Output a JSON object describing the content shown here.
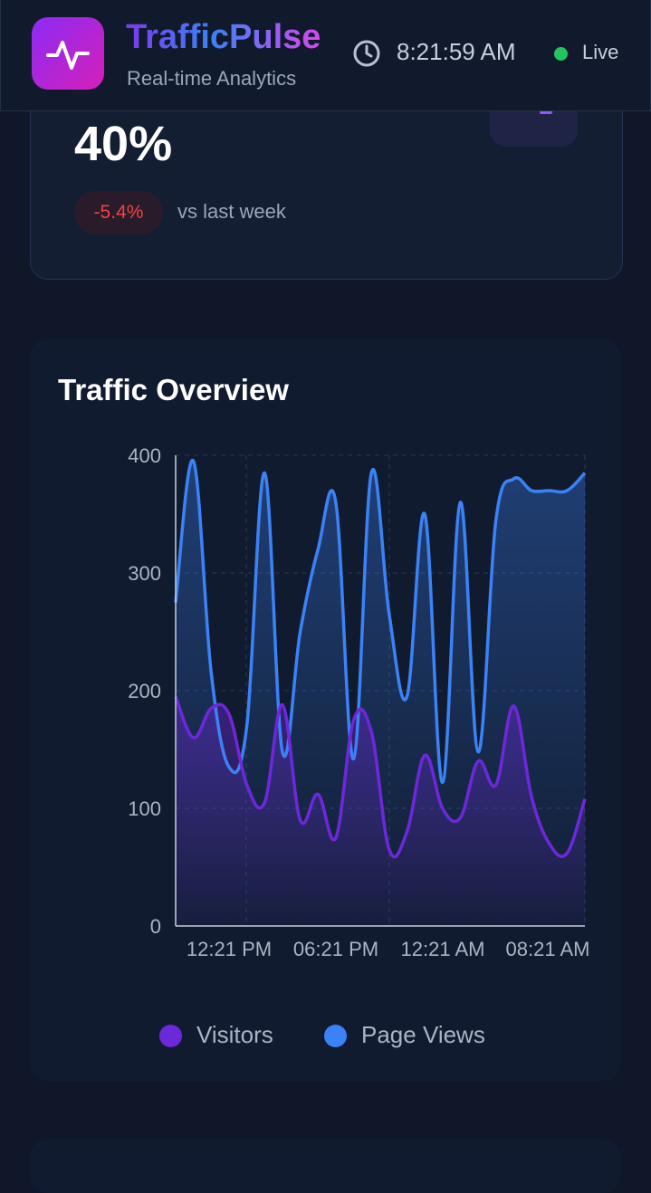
{
  "header": {
    "app_name": "TrafficPulse",
    "subtitle": "Real-time Analytics",
    "time": "8:21:59 AM",
    "status": "Live",
    "logo_icon": "activity-pulse-icon",
    "clock_icon": "clock-icon"
  },
  "stat_card": {
    "value": "40%",
    "change": "-5.4%",
    "comparison": "vs last week"
  },
  "colors": {
    "visitors": "#6d28d9",
    "page_views": "#3b82f6",
    "live": "#22c55e",
    "negative": "#ef4444"
  },
  "chart_data": {
    "type": "area",
    "title": "Traffic Overview",
    "ylim": [
      0,
      400
    ],
    "yticks": [
      0,
      100,
      200,
      300,
      400
    ],
    "xticks": [
      "12:21 PM",
      "06:21 PM",
      "12:21 AM",
      "08:21 AM"
    ],
    "grid": true,
    "legend_position": "bottom",
    "series": [
      {
        "name": "Visitors",
        "values": [
          195,
          160,
          185,
          180,
          120,
          105,
          188,
          90,
          112,
          75,
          175,
          165,
          65,
          80,
          145,
          100,
          92,
          140,
          120,
          187,
          110,
          70,
          62,
          108
        ]
      },
      {
        "name": "Page Views",
        "values": [
          275,
          395,
          215,
          135,
          170,
          385,
          148,
          250,
          320,
          360,
          142,
          385,
          265,
          195,
          350,
          122,
          360,
          148,
          345,
          380,
          370,
          370,
          370,
          385
        ]
      }
    ]
  }
}
